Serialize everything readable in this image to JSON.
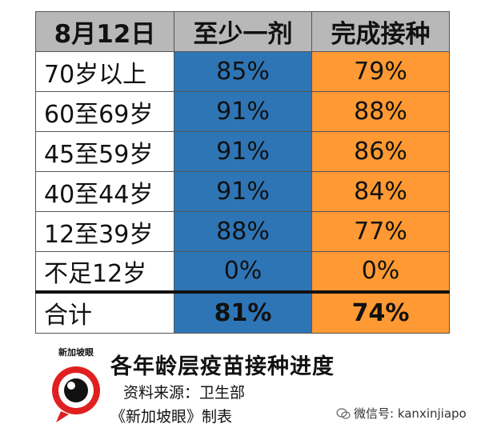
{
  "chart_data": {
    "type": "table",
    "title": "各年龄层疫苗接种进度",
    "header": [
      "8月12日",
      "至少一剂",
      "完成接种"
    ],
    "column_colors": [
      "#ffffff",
      "#2e75b6",
      "#ff9933"
    ],
    "rows": [
      {
        "category": "70岁以上",
        "values": [
          "85%",
          "79%"
        ]
      },
      {
        "category": "60至69岁",
        "values": [
          "91%",
          "88%"
        ]
      },
      {
        "category": "45至59岁",
        "values": [
          "91%",
          "86%"
        ]
      },
      {
        "category": "40至44岁",
        "values": [
          "91%",
          "84%"
        ]
      },
      {
        "category": "12至39岁",
        "values": [
          "88%",
          "77%"
        ]
      },
      {
        "category": "不足12岁",
        "values": [
          "0%",
          "0%"
        ]
      }
    ],
    "total": {
      "category": "合计",
      "values": [
        "81%",
        "74%"
      ]
    }
  },
  "footer": {
    "logo_text": "新加坡眼",
    "headline": "各年龄层疫苗接种进度",
    "source": "资料来源：卫生部",
    "maker": "《新加坡眼》制表",
    "wechat_label": "微信号: kanxinjiapo"
  }
}
